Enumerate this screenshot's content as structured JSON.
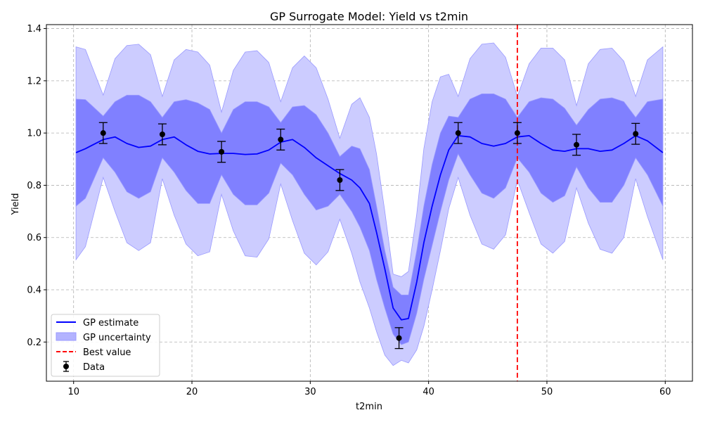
{
  "chart_data": {
    "type": "line",
    "title": "GP Surrogate Model: Yield vs t2min",
    "xlabel": "t2min",
    "ylabel": "Yield",
    "xlim": [
      7.7,
      62.3
    ],
    "ylim": [
      0.05,
      1.415
    ],
    "xticks": [
      10,
      20,
      30,
      40,
      50,
      60
    ],
    "yticks": [
      0.2,
      0.4,
      0.6,
      0.8,
      1.0,
      1.2,
      1.4
    ],
    "ytick_labels": [
      "0.2",
      "0.4",
      "0.6",
      "0.8",
      "1.0",
      "1.2",
      "1.4"
    ],
    "grid": true,
    "legend_position": "lower-left",
    "colors": {
      "gp_line": "#0000ff",
      "band_inner": "#8080ff",
      "band_outer": "#ccccff",
      "band_edge": "#9999ff",
      "best": "#ff0000",
      "data": "#000000"
    },
    "gp_curve": {
      "x": [
        10.2,
        11.0,
        12.5,
        13.5,
        14.5,
        15.5,
        16.5,
        17.5,
        18.5,
        19.5,
        20.5,
        21.5,
        22.5,
        23.5,
        24.5,
        25.5,
        26.5,
        27.5,
        28.5,
        29.5,
        30.5,
        31.5,
        32.5,
        33.5,
        34.2,
        35.0,
        35.6,
        36.3,
        37.0,
        37.7,
        38.3,
        39.0,
        39.6,
        40.3,
        41.0,
        41.7,
        42.5,
        43.5,
        44.5,
        45.5,
        46.5,
        47.5,
        48.5,
        49.5,
        50.5,
        51.5,
        52.5,
        53.5,
        54.5,
        55.5,
        56.5,
        57.5,
        58.5,
        59.8
      ],
      "mean": [
        0.925,
        0.94,
        0.975,
        0.985,
        0.96,
        0.945,
        0.95,
        0.975,
        0.985,
        0.955,
        0.93,
        0.92,
        0.922,
        0.922,
        0.918,
        0.92,
        0.935,
        0.965,
        0.975,
        0.945,
        0.905,
        0.875,
        0.845,
        0.82,
        0.79,
        0.73,
        0.62,
        0.48,
        0.33,
        0.285,
        0.29,
        0.43,
        0.58,
        0.72,
        0.84,
        0.935,
        0.99,
        0.985,
        0.96,
        0.95,
        0.96,
        0.985,
        0.99,
        0.96,
        0.935,
        0.93,
        0.94,
        0.94,
        0.93,
        0.935,
        0.96,
        0.99,
        0.97,
        0.925
      ],
      "inner_upper": [
        1.13,
        1.128,
        1.065,
        1.12,
        1.145,
        1.145,
        1.12,
        1.06,
        1.12,
        1.128,
        1.115,
        1.09,
        1.0,
        1.09,
        1.12,
        1.12,
        1.1,
        1.04,
        1.1,
        1.105,
        1.07,
        1.0,
        0.91,
        0.95,
        0.94,
        0.86,
        0.72,
        0.55,
        0.41,
        0.38,
        0.38,
        0.55,
        0.72,
        0.88,
        1.0,
        1.065,
        1.06,
        1.13,
        1.15,
        1.15,
        1.13,
        1.06,
        1.12,
        1.135,
        1.13,
        1.095,
        1.03,
        1.09,
        1.13,
        1.135,
        1.12,
        1.06,
        1.12,
        1.13
      ],
      "inner_lower": [
        0.72,
        0.75,
        0.905,
        0.85,
        0.775,
        0.75,
        0.775,
        0.905,
        0.85,
        0.78,
        0.73,
        0.73,
        0.84,
        0.765,
        0.725,
        0.725,
        0.77,
        0.885,
        0.84,
        0.765,
        0.705,
        0.72,
        0.765,
        0.7,
        0.64,
        0.55,
        0.44,
        0.33,
        0.23,
        0.19,
        0.2,
        0.31,
        0.44,
        0.57,
        0.7,
        0.82,
        0.92,
        0.84,
        0.77,
        0.75,
        0.79,
        0.905,
        0.85,
        0.77,
        0.735,
        0.76,
        0.87,
        0.79,
        0.735,
        0.735,
        0.8,
        0.905,
        0.84,
        0.72
      ],
      "outer_upper": [
        1.33,
        1.32,
        1.145,
        1.285,
        1.335,
        1.34,
        1.3,
        1.14,
        1.28,
        1.32,
        1.31,
        1.26,
        1.08,
        1.24,
        1.31,
        1.315,
        1.27,
        1.12,
        1.25,
        1.295,
        1.25,
        1.13,
        0.98,
        1.11,
        1.135,
        1.06,
        0.92,
        0.7,
        0.46,
        0.45,
        0.47,
        0.69,
        0.94,
        1.12,
        1.215,
        1.225,
        1.14,
        1.285,
        1.34,
        1.345,
        1.29,
        1.14,
        1.265,
        1.325,
        1.325,
        1.28,
        1.105,
        1.265,
        1.32,
        1.325,
        1.275,
        1.14,
        1.28,
        1.33
      ],
      "outer_lower": [
        0.515,
        0.565,
        0.83,
        0.7,
        0.58,
        0.55,
        0.58,
        0.825,
        0.685,
        0.575,
        0.53,
        0.545,
        0.765,
        0.625,
        0.53,
        0.525,
        0.595,
        0.805,
        0.665,
        0.54,
        0.495,
        0.545,
        0.67,
        0.54,
        0.43,
        0.33,
        0.24,
        0.15,
        0.11,
        0.13,
        0.12,
        0.17,
        0.26,
        0.4,
        0.55,
        0.71,
        0.83,
        0.685,
        0.575,
        0.555,
        0.61,
        0.82,
        0.695,
        0.575,
        0.54,
        0.585,
        0.79,
        0.655,
        0.555,
        0.54,
        0.6,
        0.825,
        0.68,
        0.515
      ]
    },
    "data_points": {
      "x": [
        12.5,
        17.5,
        22.5,
        27.5,
        32.5,
        37.5,
        42.5,
        47.5,
        52.5,
        57.5
      ],
      "y": [
        1.0,
        0.995,
        0.928,
        0.975,
        0.82,
        0.215,
        1.0,
        1.0,
        0.955,
        0.997
      ],
      "err": [
        0.04,
        0.04,
        0.04,
        0.04,
        0.04,
        0.04,
        0.04,
        0.04,
        0.04,
        0.04
      ]
    },
    "best_value_x": 47.5,
    "legend": [
      "GP estimate",
      "GP uncertainty",
      "Best value",
      "Data"
    ]
  }
}
